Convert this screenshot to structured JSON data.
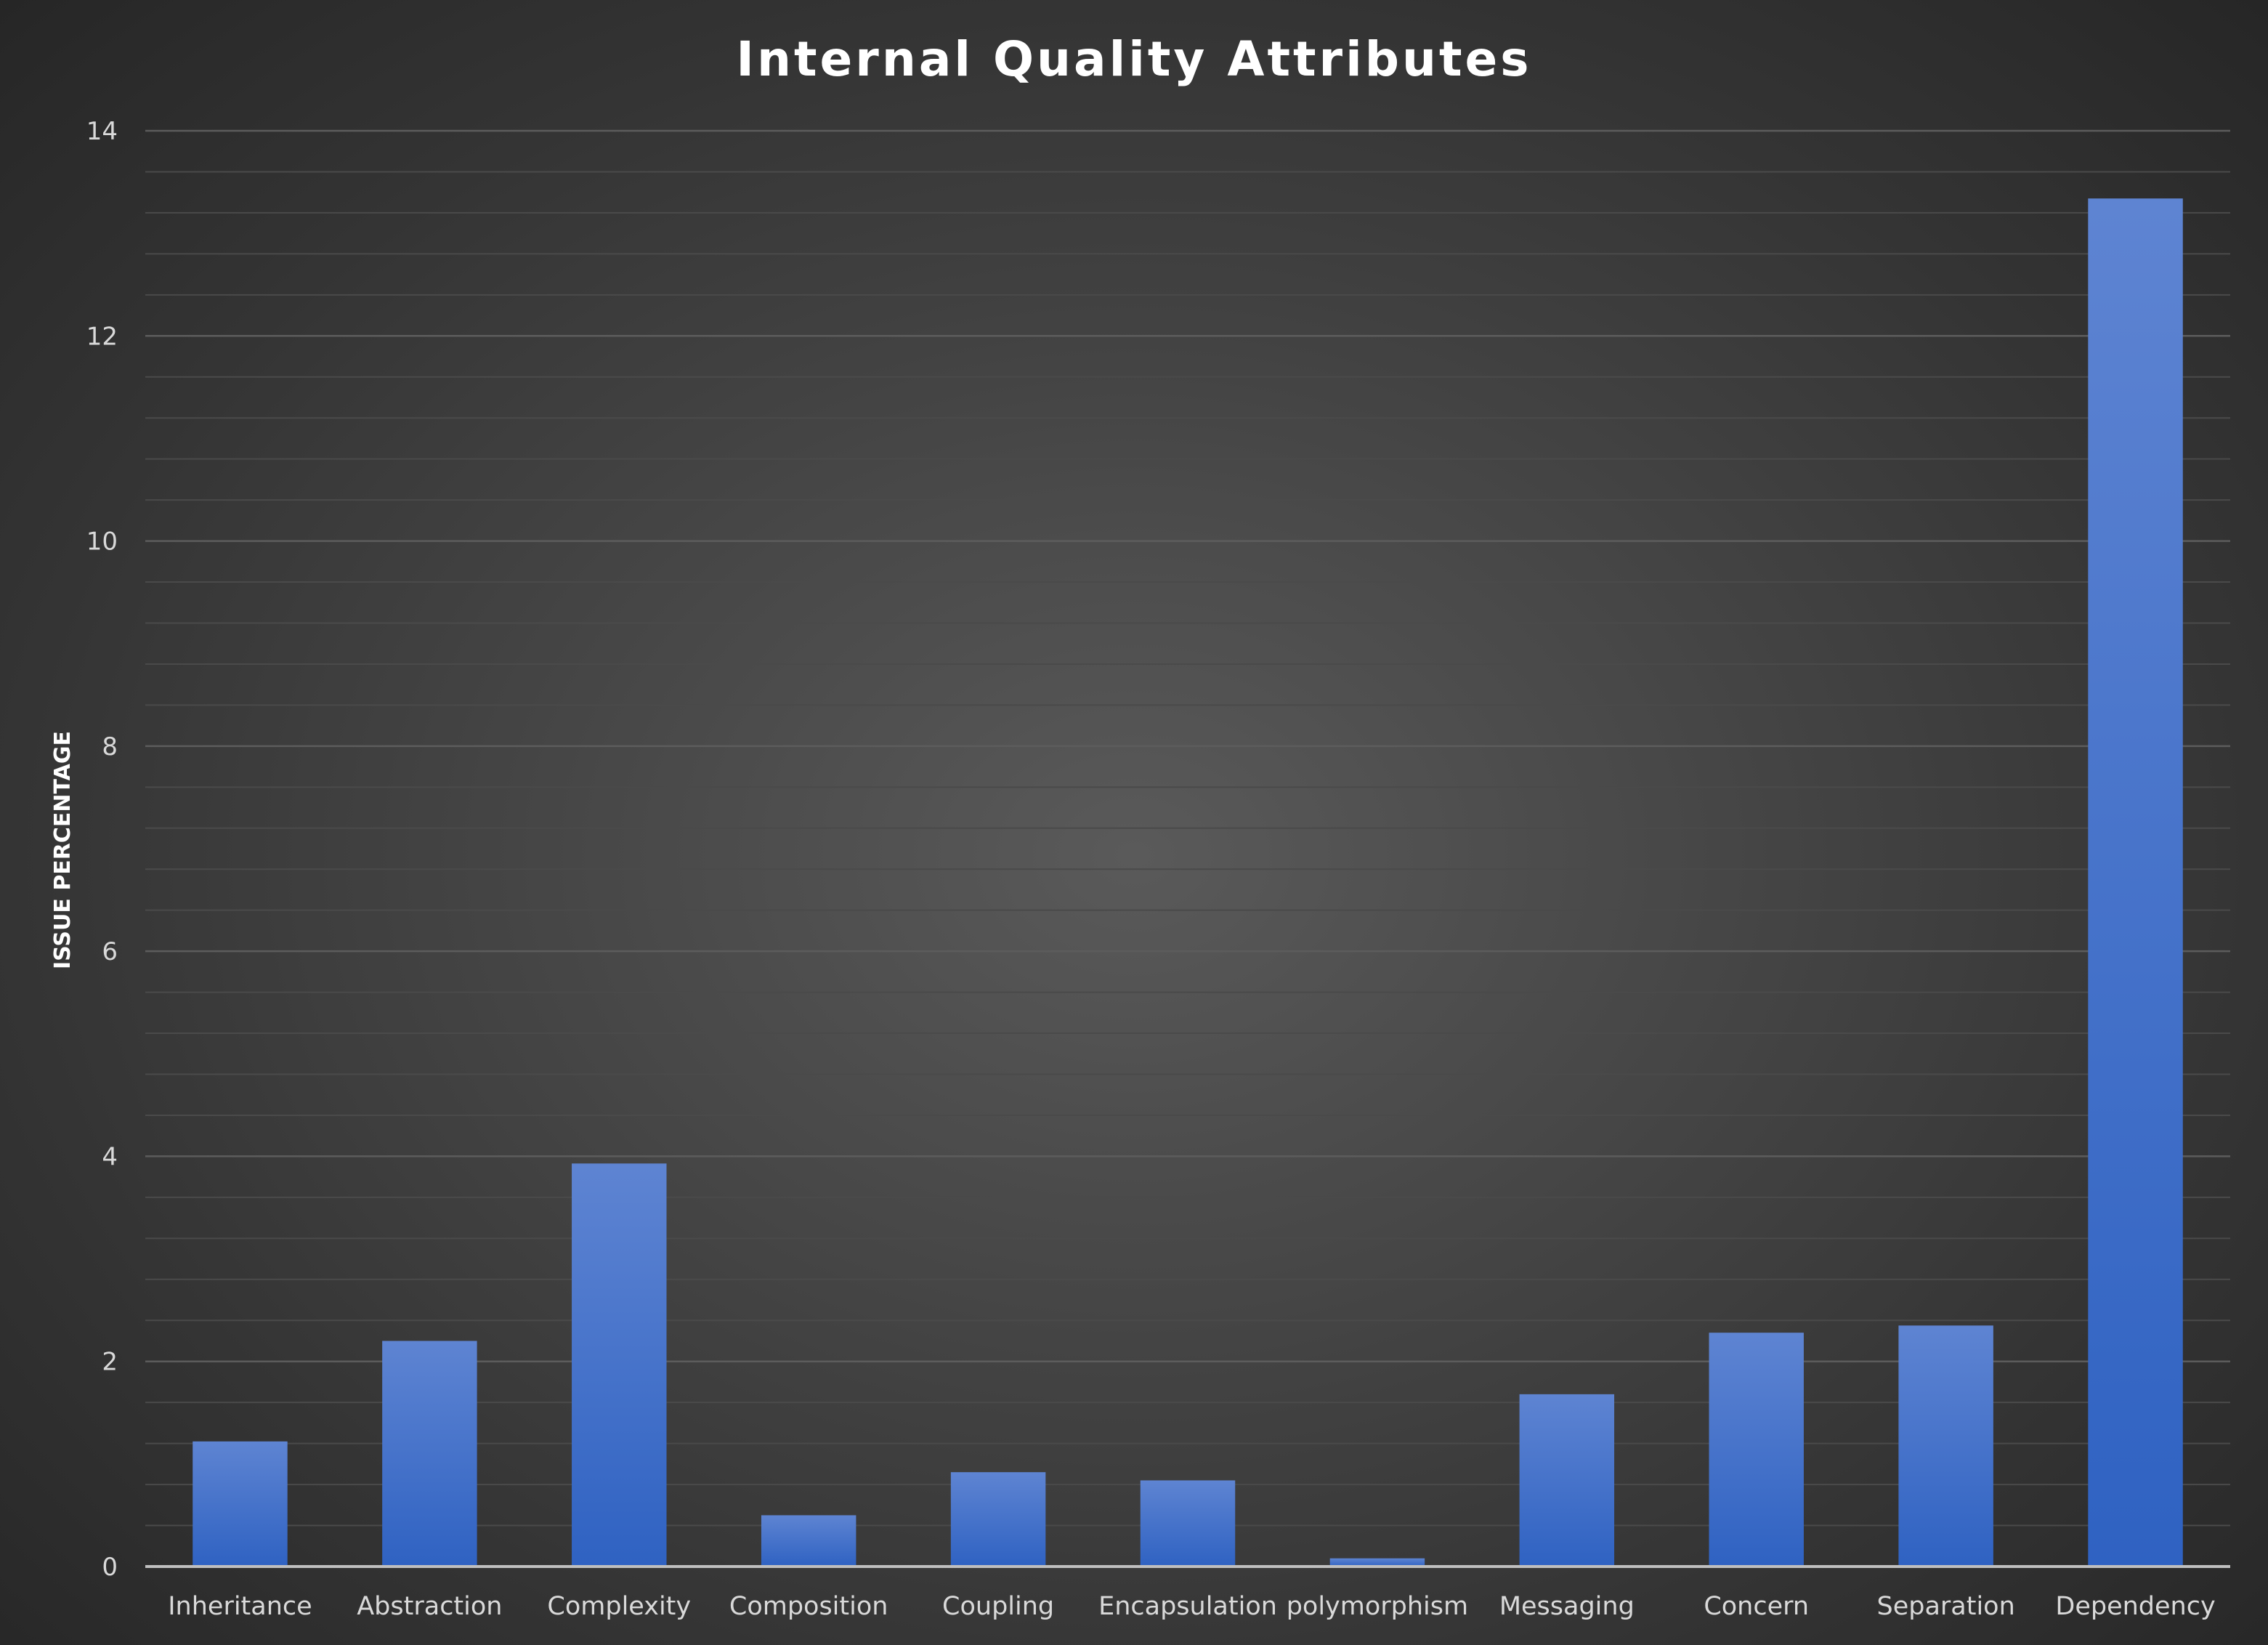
{
  "chart_data": {
    "type": "bar",
    "title": "Internal Quality Attributes",
    "xlabel": "",
    "ylabel": "ISSUE PERCENTAGE",
    "categories": [
      "Inheritance",
      "Abstraction",
      "Complexity",
      "Composition",
      "Coupling",
      "Encapsulation",
      "polymorphism",
      "Messaging",
      "Concern",
      "Separation",
      "Dependency"
    ],
    "values": [
      1.22,
      2.2,
      3.93,
      0.5,
      0.92,
      0.84,
      0.08,
      1.68,
      2.28,
      2.35,
      13.34
    ],
    "ylim": [
      0,
      14
    ],
    "yticks": [
      0,
      2,
      4,
      6,
      8,
      10,
      12,
      14
    ],
    "grid": true,
    "legend": "none",
    "colors": {
      "bar_top": "#5e84d2",
      "bar_bottom": "#2f62c2",
      "gridline_major": "#5c5c5c",
      "gridline_minor": "#4a4a4a",
      "axis": "#bfbfbf"
    }
  }
}
